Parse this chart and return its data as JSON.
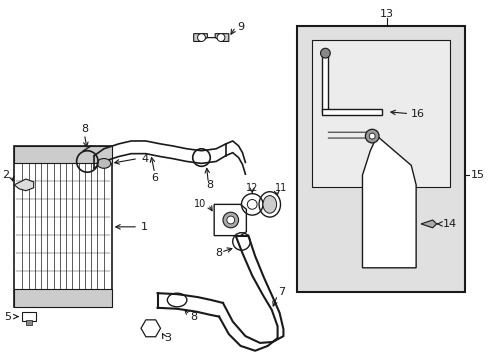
{
  "bg_color": "#ffffff",
  "line_color": "#1a1a1a",
  "box_fill": "#e0e0e0",
  "font_size": 8,
  "figsize": [
    4.89,
    3.6
  ],
  "dpi": 100
}
